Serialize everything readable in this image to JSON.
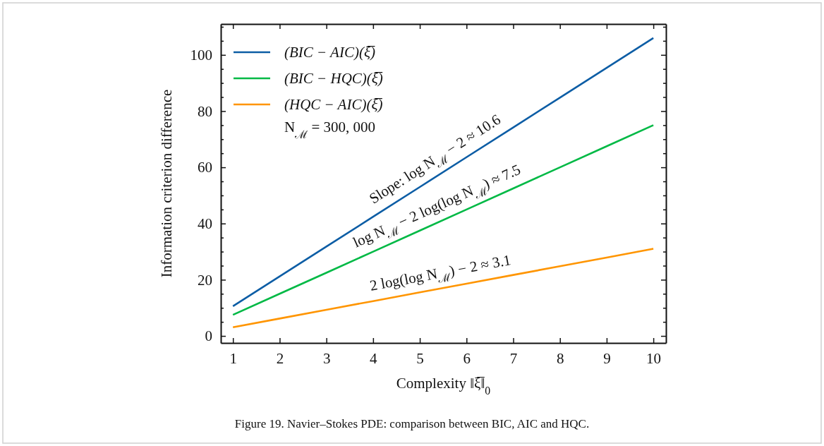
{
  "chart_data": {
    "type": "line",
    "title": "Figure 19. Navier–Stokes PDE: comparison between BIC, AIC and HQC.",
    "xlabel": "Complexity ‖ξ̅‖$_{0}$",
    "ylabel": "Information criterion difference",
    "x": [
      1,
      2,
      3,
      4,
      5,
      6,
      7,
      8,
      9,
      10
    ],
    "series": [
      {
        "name": "(BIC − AIC)(ξ̅)",
        "color": "#0c5da5",
        "values": [
          10.6,
          21.2,
          31.8,
          42.4,
          53,
          63.6,
          74.2,
          84.8,
          95.4,
          106
        ]
      },
      {
        "name": "(BIC − HQC)(ξ̅)",
        "color": "#00b945",
        "values": [
          7.5,
          15,
          22.5,
          30,
          37.5,
          45,
          52.5,
          60,
          67.5,
          75
        ]
      },
      {
        "name": "(HQC − AIC)(ξ̅)",
        "color": "#ff9500",
        "values": [
          3.1,
          6.2,
          9.3,
          12.4,
          15.5,
          18.6,
          21.7,
          24.8,
          27.9,
          31
        ]
      }
    ],
    "annotations": [
      "Slope: log N$_{ℳ}$ − 2 ≈ 10.6",
      "log N$_{ℳ}$ − 2 log(log N$_{ℳ}$) ≈ 7.5",
      "2 log(log N$_{ℳ}$) − 2 ≈ 3.1",
      "N$_{ℳ}$ = 300, 000"
    ],
    "xlim": [
      0.74,
      10.27
    ],
    "xticks": [
      1,
      2,
      3,
      4,
      5,
      6,
      7,
      8,
      9,
      10
    ],
    "ylim": [
      -2.5,
      111
    ],
    "yticks": [
      0,
      {
        "value": 5,
        "label": null
      },
      {
        "value": 10,
        "label": null
      },
      {
        "value": 15,
        "label": null
      },
      20,
      {
        "value": 25,
        "label": null
      },
      {
        "value": 30,
        "label": null
      },
      {
        "value": 35,
        "label": null
      },
      40,
      {
        "value": 45,
        "label": null
      },
      {
        "value": 50,
        "label": null
      },
      {
        "value": 55,
        "label": null
      },
      60,
      {
        "value": 65,
        "label": null
      },
      {
        "value": 70,
        "label": null
      },
      {
        "value": 75,
        "label": null
      },
      80,
      {
        "value": 85,
        "label": null
      },
      {
        "value": 90,
        "label": null
      },
      {
        "value": 95,
        "label": null
      },
      100,
      {
        "value": 105,
        "label": null
      },
      {
        "value": 110,
        "label": null
      }
    ],
    "legend": "top left",
    "marker": "none",
    "line_style": "solid",
    "grid": false
  }
}
